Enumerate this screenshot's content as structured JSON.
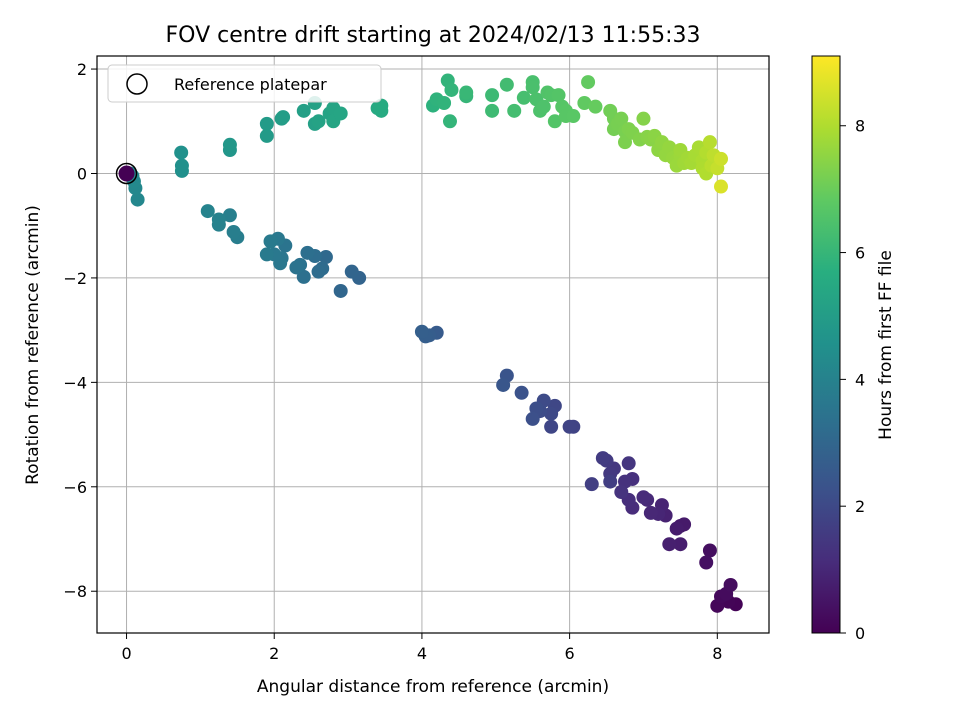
{
  "chart_data": {
    "type": "scatter",
    "title": "FOV centre drift starting at 2024/02/13 11:55:33",
    "xlabel": "Angular distance from reference (arcmin)",
    "ylabel": "Rotation from reference (arcmin)",
    "xlim": [
      -0.4,
      8.7
    ],
    "ylim": [
      -8.8,
      2.25
    ],
    "xticks": [
      0,
      2,
      4,
      6,
      8
    ],
    "yticks": [
      -8,
      -6,
      -4,
      -2,
      0,
      2
    ],
    "grid": true,
    "legend": {
      "placement": "top-left",
      "entries": [
        "Reference platepar"
      ]
    },
    "reference_point": {
      "x": 0,
      "y": 0
    },
    "colorbar": {
      "label": "Hours from first FF file",
      "range": [
        0,
        9.1
      ],
      "ticks": [
        0,
        2,
        4,
        6,
        8
      ],
      "colormap": "viridis"
    },
    "series": [
      {
        "points": [
          [
            8.25,
            -8.25,
            0.05
          ],
          [
            8.15,
            -8.2,
            0.1
          ],
          [
            8.0,
            -8.28,
            0.15
          ],
          [
            8.05,
            -8.1,
            0.2
          ],
          [
            8.12,
            -8.05,
            0.25
          ],
          [
            8.18,
            -7.88,
            0.3
          ],
          [
            7.9,
            -7.22,
            0.35
          ],
          [
            7.85,
            -7.45,
            0.4
          ],
          [
            7.5,
            -6.75,
            0.6
          ],
          [
            7.55,
            -6.72,
            0.65
          ],
          [
            7.45,
            -6.8,
            0.7
          ],
          [
            7.5,
            -7.1,
            0.75
          ],
          [
            7.35,
            -7.1,
            0.8
          ],
          [
            7.3,
            -6.55,
            0.85
          ],
          [
            7.25,
            -6.35,
            0.9
          ],
          [
            7.2,
            -6.52,
            0.95
          ],
          [
            7.1,
            -6.5,
            1.0
          ],
          [
            7.05,
            -6.25,
            1.05
          ],
          [
            7.0,
            -6.2,
            1.1
          ],
          [
            6.85,
            -6.4,
            1.15
          ],
          [
            6.8,
            -6.25,
            1.2
          ],
          [
            6.85,
            -5.85,
            1.25
          ],
          [
            6.75,
            -5.9,
            1.3
          ],
          [
            6.7,
            -6.1,
            1.35
          ],
          [
            6.8,
            -5.55,
            1.4
          ],
          [
            6.6,
            -5.65,
            1.45
          ],
          [
            6.55,
            -5.75,
            1.5
          ],
          [
            6.5,
            -5.5,
            1.55
          ],
          [
            6.45,
            -5.45,
            1.6
          ],
          [
            6.55,
            -5.9,
            1.65
          ],
          [
            6.3,
            -5.95,
            1.7
          ],
          [
            6.05,
            -4.85,
            1.8
          ],
          [
            6.0,
            -4.85,
            1.85
          ],
          [
            5.75,
            -4.85,
            1.9
          ],
          [
            5.8,
            -4.45,
            1.95
          ],
          [
            5.75,
            -4.6,
            2.0
          ],
          [
            5.65,
            -4.35,
            2.05
          ],
          [
            5.6,
            -4.55,
            2.1
          ],
          [
            5.55,
            -4.5,
            2.15
          ],
          [
            5.5,
            -4.7,
            2.2
          ],
          [
            5.35,
            -4.2,
            2.3
          ],
          [
            5.15,
            -3.87,
            2.35
          ],
          [
            5.1,
            -4.05,
            2.4
          ],
          [
            4.2,
            -3.05,
            2.6
          ],
          [
            4.1,
            -3.1,
            2.65
          ],
          [
            4.05,
            -3.12,
            2.7
          ],
          [
            4.0,
            -3.03,
            2.75
          ],
          [
            3.15,
            -2.0,
            2.9
          ],
          [
            3.05,
            -1.88,
            2.95
          ],
          [
            2.9,
            -2.25,
            3.0
          ],
          [
            2.7,
            -1.6,
            3.1
          ],
          [
            2.65,
            -1.82,
            3.15
          ],
          [
            2.6,
            -1.88,
            3.2
          ],
          [
            2.55,
            -1.58,
            3.25
          ],
          [
            2.45,
            -1.52,
            3.3
          ],
          [
            2.4,
            -1.98,
            3.35
          ],
          [
            2.35,
            -1.75,
            3.4
          ],
          [
            2.3,
            -1.8,
            3.45
          ],
          [
            2.15,
            -1.38,
            3.5
          ],
          [
            2.1,
            -1.62,
            3.55
          ],
          [
            2.08,
            -1.72,
            3.6
          ],
          [
            2.05,
            -1.25,
            3.62
          ],
          [
            2.0,
            -1.55,
            3.65
          ],
          [
            1.95,
            -1.3,
            3.7
          ],
          [
            1.9,
            -1.55,
            3.72
          ],
          [
            1.5,
            -1.22,
            3.8
          ],
          [
            1.45,
            -1.12,
            3.85
          ],
          [
            1.4,
            -0.8,
            3.9
          ],
          [
            1.25,
            -0.98,
            3.95
          ],
          [
            1.25,
            -0.88,
            4.0
          ],
          [
            1.1,
            -0.72,
            4.05
          ],
          [
            0.15,
            -0.5,
            4.2
          ],
          [
            0.12,
            -0.28,
            4.22
          ],
          [
            0.1,
            -0.15,
            4.24
          ],
          [
            0.08,
            -0.05,
            4.26
          ],
          [
            0.05,
            0.0,
            4.28
          ],
          [
            0.75,
            0.05,
            4.5
          ],
          [
            0.75,
            0.15,
            4.52
          ],
          [
            0.74,
            0.4,
            4.55
          ],
          [
            1.4,
            0.45,
            4.75
          ],
          [
            1.4,
            0.55,
            4.8
          ],
          [
            1.9,
            0.72,
            4.9
          ],
          [
            1.9,
            0.95,
            4.95
          ],
          [
            2.1,
            1.05,
            5.0
          ],
          [
            2.12,
            1.08,
            5.02
          ],
          [
            2.4,
            1.2,
            5.1
          ],
          [
            2.55,
            0.95,
            5.15
          ],
          [
            2.55,
            1.35,
            5.18
          ],
          [
            2.6,
            1.0,
            5.2
          ],
          [
            2.75,
            1.15,
            5.25
          ],
          [
            2.8,
            1.25,
            5.3
          ],
          [
            2.8,
            1.0,
            5.32
          ],
          [
            2.9,
            1.15,
            5.35
          ],
          [
            3.4,
            1.25,
            5.5
          ],
          [
            3.45,
            1.2,
            5.52
          ],
          [
            3.45,
            1.3,
            5.55
          ],
          [
            4.15,
            1.3,
            5.8
          ],
          [
            4.2,
            1.42,
            5.85
          ],
          [
            4.3,
            1.35,
            5.88
          ],
          [
            4.35,
            1.78,
            5.9
          ],
          [
            4.4,
            1.6,
            5.93
          ],
          [
            4.38,
            1.0,
            5.95
          ],
          [
            4.6,
            1.48,
            6.0
          ],
          [
            4.6,
            1.55,
            6.05
          ],
          [
            4.95,
            1.5,
            6.15
          ],
          [
            4.95,
            1.2,
            6.18
          ],
          [
            5.15,
            1.7,
            6.25
          ],
          [
            5.25,
            1.2,
            6.3
          ],
          [
            5.38,
            1.45,
            6.35
          ],
          [
            5.5,
            1.75,
            6.4
          ],
          [
            5.5,
            1.65,
            6.42
          ],
          [
            5.55,
            1.42,
            6.45
          ],
          [
            5.6,
            1.2,
            6.48
          ],
          [
            5.65,
            1.28,
            6.5
          ],
          [
            5.7,
            1.55,
            6.55
          ],
          [
            5.75,
            1.5,
            6.58
          ],
          [
            5.8,
            1.0,
            6.6
          ],
          [
            5.85,
            1.5,
            6.62
          ],
          [
            5.9,
            1.28,
            6.65
          ],
          [
            5.95,
            1.2,
            6.68
          ],
          [
            5.95,
            1.1,
            6.7
          ],
          [
            6.05,
            1.1,
            6.72
          ],
          [
            6.2,
            1.35,
            6.85
          ],
          [
            6.25,
            1.75,
            6.88
          ],
          [
            6.35,
            1.28,
            6.92
          ],
          [
            6.55,
            1.2,
            7.1
          ],
          [
            6.6,
            1.05,
            7.12
          ],
          [
            6.6,
            0.85,
            7.15
          ],
          [
            6.65,
            0.95,
            7.18
          ],
          [
            6.7,
            1.05,
            7.2
          ],
          [
            6.75,
            0.8,
            7.22
          ],
          [
            6.75,
            0.6,
            7.25
          ],
          [
            6.8,
            0.85,
            7.28
          ],
          [
            6.85,
            0.78,
            7.3
          ],
          [
            6.95,
            0.65,
            7.35
          ],
          [
            7.0,
            1.05,
            7.38
          ],
          [
            7.05,
            0.7,
            7.42
          ],
          [
            7.1,
            0.65,
            7.45
          ],
          [
            7.15,
            0.72,
            7.48
          ],
          [
            7.2,
            0.45,
            7.52
          ],
          [
            7.25,
            0.6,
            7.55
          ],
          [
            7.3,
            0.35,
            7.6
          ],
          [
            7.35,
            0.5,
            7.62
          ],
          [
            7.4,
            0.3,
            7.65
          ],
          [
            7.45,
            0.25,
            7.68
          ],
          [
            7.45,
            0.15,
            7.7
          ],
          [
            7.5,
            0.35,
            7.72
          ],
          [
            7.5,
            0.45,
            7.75
          ],
          [
            7.55,
            0.2,
            7.78
          ],
          [
            7.6,
            0.3,
            7.8
          ],
          [
            7.65,
            0.2,
            7.85
          ],
          [
            7.7,
            0.35,
            7.88
          ],
          [
            7.75,
            0.5,
            7.9
          ],
          [
            7.8,
            0.25,
            7.95
          ],
          [
            7.8,
            0.1,
            7.98
          ],
          [
            7.85,
            0.0,
            8.02
          ],
          [
            7.85,
            0.4,
            8.05
          ],
          [
            7.9,
            0.6,
            8.1
          ],
          [
            7.92,
            0.15,
            8.15
          ],
          [
            7.95,
            0.35,
            8.2
          ],
          [
            8.0,
            0.1,
            8.3
          ],
          [
            8.05,
            0.28,
            8.4
          ],
          [
            8.05,
            -0.25,
            8.6
          ]
        ]
      }
    ]
  }
}
